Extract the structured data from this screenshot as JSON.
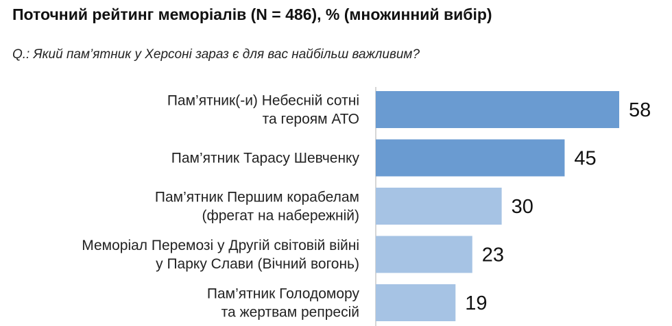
{
  "title": "Поточний рейтинг меморіалів (N = 486), % (множинний вибір)",
  "question": "Q.: Який пам’ятник у Херсоні зараз є для вас найбільш важливим?",
  "chart_data": {
    "type": "bar",
    "orientation": "horizontal",
    "categories": [
      [
        "Пам’ятник(-и) Небесній сотні",
        "та героям АТО"
      ],
      [
        "Пам’ятник Тарасу Шевченку"
      ],
      [
        "Пам’ятник Першим корабелам",
        "(фрегат на набережній)"
      ],
      [
        "Меморіал Перемозі у Другій світовій війні",
        "у Парку Слави (Вічний вогонь)"
      ],
      [
        "Пам’ятник Голодомору",
        "та жертвам репресій"
      ]
    ],
    "values": [
      58,
      45,
      30,
      23,
      19
    ],
    "colors": [
      "#6a9bd1",
      "#6a9bd1",
      "#a6c3e4",
      "#a6c3e4",
      "#a6c3e4"
    ],
    "xlim": [
      0,
      100
    ],
    "grid": false,
    "legend": "none"
  }
}
